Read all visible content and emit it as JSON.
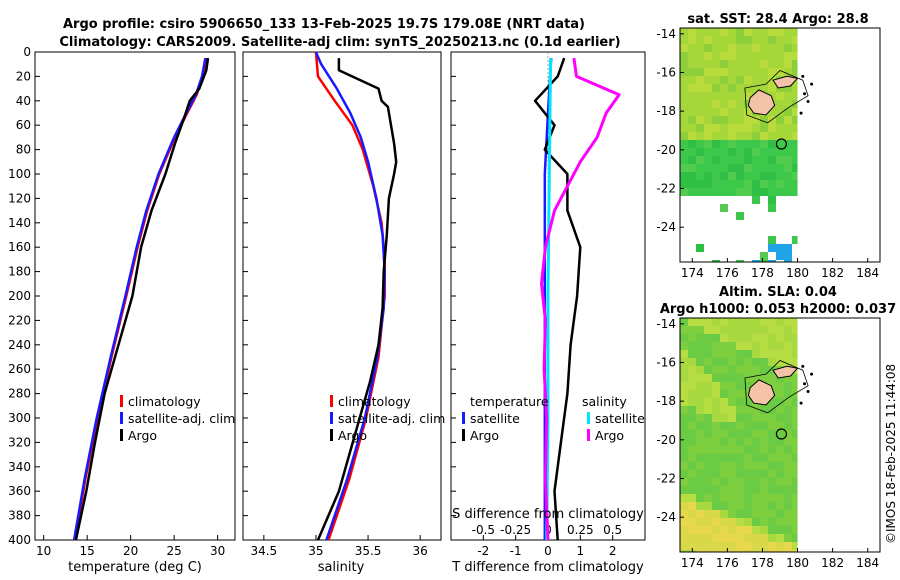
{
  "header": {
    "title_line1": "Argo profile: csiro 5906650_133 13-Feb-2025 19.7S 179.08E (NRT data)",
    "title_line2": "Climatology: CARS2009. Satellite-adj clim: synTS_20250213.nc (0.1d earlier)"
  },
  "credit": "©IMOS 18-Feb-2025 11:44:08",
  "colors": {
    "climatology": "#ff0000",
    "satellite": "#1a1aff",
    "argo": "#000000",
    "salinity_satellite": "#00e5ff",
    "salinity_argo": "#ff00ff",
    "sst_green": "#33cc44",
    "land": "#f4c2a6"
  },
  "chart_data": [
    {
      "type": "line",
      "id": "temperature",
      "xlabel": "temperature (deg C)",
      "ylabel": "",
      "xlim": [
        9,
        32
      ],
      "ylim": [
        400,
        0
      ],
      "xticks": [
        "10",
        "15",
        "20",
        "25",
        "30"
      ],
      "xtick_values": [
        10,
        15,
        20,
        25,
        30
      ],
      "yticks": [
        "0",
        "20",
        "40",
        "60",
        "80",
        "100",
        "120",
        "140",
        "160",
        "180",
        "200",
        "220",
        "240",
        "260",
        "280",
        "300",
        "320",
        "340",
        "360",
        "380",
        "400"
      ],
      "ytick_values": [
        0,
        20,
        40,
        60,
        80,
        100,
        120,
        140,
        160,
        180,
        200,
        220,
        240,
        260,
        280,
        300,
        320,
        340,
        360,
        380,
        400
      ],
      "legend": [
        "climatology",
        "satellite-adj. clim",
        "Argo"
      ],
      "series": [
        {
          "name": "climatology",
          "color": "#ff0000",
          "depth": [
            5,
            20,
            35,
            50,
            70,
            100,
            130,
            160,
            200,
            250,
            300,
            350,
            400
          ],
          "values": [
            28.7,
            28.3,
            27.6,
            26.5,
            25.1,
            23.3,
            21.9,
            20.8,
            19.5,
            17.8,
            16.2,
            14.8,
            13.6
          ]
        },
        {
          "name": "satellite-adj. clim",
          "color": "#1a1aff",
          "depth": [
            5,
            20,
            35,
            50,
            70,
            100,
            130,
            160,
            200,
            250,
            300,
            350,
            400
          ],
          "values": [
            28.6,
            28.2,
            27.5,
            26.4,
            25.0,
            23.2,
            21.8,
            20.7,
            19.4,
            17.7,
            16.1,
            14.7,
            13.5
          ]
        },
        {
          "name": "Argo",
          "color": "#000000",
          "depth": [
            5,
            15,
            30,
            40,
            55,
            75,
            100,
            130,
            160,
            200,
            240,
            280,
            320,
            360,
            400
          ],
          "values": [
            28.9,
            28.7,
            27.9,
            26.8,
            26.1,
            25.1,
            24.0,
            22.4,
            21.2,
            20.2,
            18.6,
            17.0,
            15.9,
            14.9,
            13.7
          ]
        }
      ]
    },
    {
      "type": "line",
      "id": "salinity",
      "xlabel": "salinity",
      "ylabel": "",
      "xlim": [
        34.3,
        36.2
      ],
      "ylim": [
        400,
        0
      ],
      "xticks": [
        "34.5",
        "35",
        "35.5",
        "36"
      ],
      "xtick_values": [
        34.5,
        35,
        35.5,
        36
      ],
      "legend": [
        "climatology",
        "satellite-adj. clim",
        "Argo"
      ],
      "series": [
        {
          "name": "climatology",
          "color": "#ff0000",
          "depth": [
            0,
            20,
            40,
            60,
            80,
            110,
            140,
            170,
            200,
            250,
            300,
            350,
            400
          ],
          "values": [
            35.0,
            35.02,
            35.18,
            35.35,
            35.45,
            35.55,
            35.63,
            35.66,
            35.66,
            35.6,
            35.48,
            35.32,
            35.12
          ]
        },
        {
          "name": "satellite-adj. clim",
          "color": "#1a1aff",
          "depth": [
            0,
            10,
            30,
            50,
            70,
            90,
            120,
            150,
            180,
            210,
            250,
            300,
            350,
            400
          ],
          "values": [
            35.0,
            35.05,
            35.2,
            35.33,
            35.43,
            35.5,
            35.58,
            35.64,
            35.66,
            35.65,
            35.59,
            35.47,
            35.3,
            35.1
          ]
        },
        {
          "name": "Argo",
          "color": "#000000",
          "depth": [
            5,
            15,
            30,
            40,
            45,
            60,
            75,
            90,
            100,
            120,
            150,
            180,
            210,
            240,
            270,
            300,
            330,
            360,
            400
          ],
          "values": [
            35.22,
            35.22,
            35.6,
            35.63,
            35.69,
            35.72,
            35.75,
            35.77,
            35.75,
            35.7,
            35.68,
            35.65,
            35.64,
            35.6,
            35.52,
            35.42,
            35.32,
            35.22,
            35.02
          ]
        }
      ]
    },
    {
      "type": "line",
      "id": "difference",
      "xlabel": "T difference from climatology",
      "x2label": "S difference from climatology",
      "xlim": [
        -3,
        3
      ],
      "ylim": [
        400,
        0
      ],
      "xticks": [
        "-2",
        "-1",
        "0",
        "1",
        "2"
      ],
      "xtick_values": [
        -2,
        -1,
        0,
        1,
        2
      ],
      "s_xticks": [
        "-0.5",
        "-0.25",
        "0",
        "0.25",
        "0.5"
      ],
      "s_xtick_values": [
        -0.5,
        -0.25,
        0,
        0.25,
        0.5
      ],
      "s_scale": 0.25,
      "legend_temperature": [
        "temperature",
        "satellite",
        "Argo"
      ],
      "legend_salinity": [
        "salinity",
        "satellite",
        "Argo"
      ],
      "series": [
        {
          "name": "temperature satellite",
          "color": "#1a1aff",
          "depth": [
            5,
            50,
            100,
            200,
            300,
            400
          ],
          "values": [
            0.1,
            0.0,
            -0.1,
            -0.1,
            -0.1,
            -0.1
          ]
        },
        {
          "name": "temperature Argo",
          "color": "#000000",
          "depth": [
            5,
            20,
            40,
            60,
            80,
            100,
            130,
            160,
            200,
            240,
            280,
            320,
            360,
            400
          ],
          "values": [
            0.5,
            0.3,
            -0.4,
            0.2,
            -0.1,
            0.6,
            0.6,
            1.0,
            0.9,
            0.7,
            0.6,
            0.4,
            0.2,
            0.3
          ]
        },
        {
          "name": "salinity satellite",
          "color": "#00e5ff",
          "depth": [
            5,
            100,
            200,
            300,
            400
          ],
          "values": [
            0.02,
            0.01,
            0.0,
            0.0,
            -0.01
          ]
        },
        {
          "name": "salinity Argo",
          "color": "#ff00ff",
          "depth": [
            5,
            20,
            35,
            50,
            70,
            90,
            110,
            130,
            160,
            190,
            220,
            260,
            300,
            350,
            400
          ],
          "values": [
            0.2,
            0.22,
            0.55,
            0.45,
            0.38,
            0.25,
            0.15,
            0.05,
            -0.02,
            -0.05,
            -0.02,
            -0.03,
            -0.01,
            -0.02,
            0.0
          ]
        }
      ]
    },
    {
      "type": "heatmap",
      "id": "sst-map",
      "title": "sat. SST: 28.4 Argo: 28.8",
      "xticks": [
        "174",
        "176",
        "178",
        "180",
        "182",
        "184"
      ],
      "xtick_values": [
        174,
        176,
        178,
        180,
        182,
        184
      ],
      "yticks": [
        "-14",
        "-16",
        "-18",
        "-20",
        "-22",
        "-24"
      ],
      "ytick_values": [
        -14,
        -16,
        -18,
        -20,
        -22,
        -24
      ],
      "xlim": [
        173.3,
        184.7
      ],
      "ylim": [
        -25.8,
        -13.7
      ],
      "argo_position": [
        179.08,
        -19.7
      ]
    },
    {
      "type": "heatmap",
      "id": "sla-map",
      "title_line1": "Altim. SLA: 0.04",
      "title_line2": "Argo h1000: 0.053 h2000: 0.037",
      "xticks": [
        "174",
        "176",
        "178",
        "180",
        "182",
        "184"
      ],
      "xtick_values": [
        174,
        176,
        178,
        180,
        182,
        184
      ],
      "yticks": [
        "-14",
        "-16",
        "-18",
        "-20",
        "-22",
        "-24"
      ],
      "ytick_values": [
        -14,
        -16,
        -18,
        -20,
        -22,
        -24
      ],
      "xlim": [
        173.3,
        184.7
      ],
      "ylim": [
        -25.8,
        -13.7
      ],
      "argo_position": [
        179.08,
        -19.7
      ]
    }
  ]
}
